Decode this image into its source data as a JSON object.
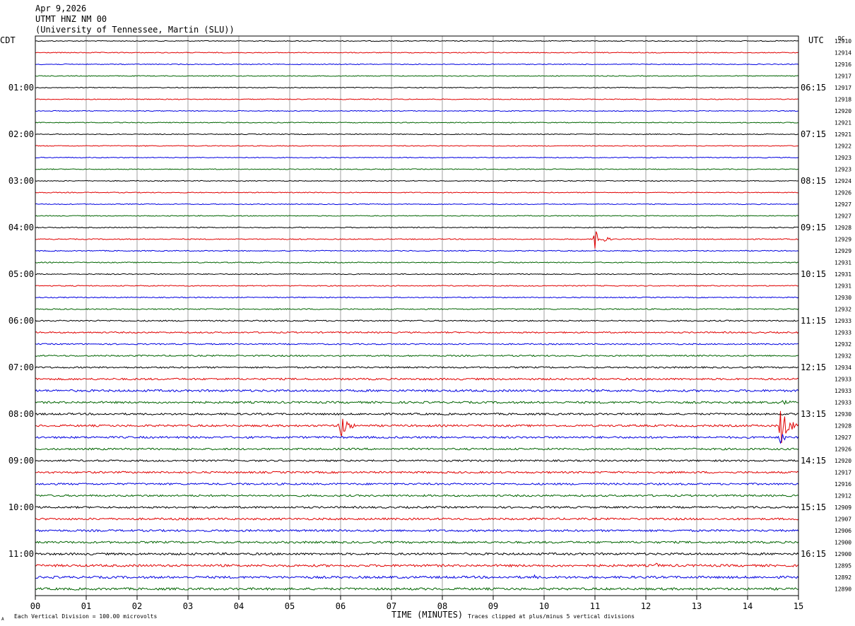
{
  "header": {
    "line1": "Apr 9,2026",
    "line2": "UTMT HNZ NM 00",
    "line3": "(University of Tennessee, Martin (SLU))"
  },
  "left_axis_title": "CDT",
  "right_axis_title": "UTC",
  "dc_header": "DC",
  "footer": {
    "scale_note": "Each Vertical Division =  100.00 microvolts",
    "xlabel": "TIME (MINUTES)",
    "clip_note": "Traces clipped at plus/minus 5 vertical divisions",
    "corner_mark": "A"
  },
  "chart_data": {
    "type": "line",
    "subtype": "helicorder",
    "x_unit": "minutes",
    "xlim": [
      0,
      15
    ],
    "x_ticks": [
      "00",
      "01",
      "02",
      "03",
      "04",
      "05",
      "06",
      "07",
      "08",
      "09",
      "10",
      "11",
      "12",
      "13",
      "14",
      "15"
    ],
    "rows_per_hour": 4,
    "row_count": 48,
    "trace_colors": [
      "#000000",
      "#e00000",
      "#0000e0",
      "#006400"
    ],
    "left_hour_labels": [
      "01:00",
      "02:00",
      "03:00",
      "04:00",
      "05:00",
      "06:00",
      "07:00",
      "08:00",
      "09:00",
      "10:00",
      "11:00"
    ],
    "right_hour_labels": [
      "06:15",
      "07:15",
      "08:15",
      "09:15",
      "10:15",
      "11:15",
      "12:15",
      "13:15",
      "14:15",
      "15:15",
      "16:15"
    ],
    "first_labeled_row": 4,
    "dc_values": [
      "12910",
      "12914",
      "12916",
      "12917",
      "12917",
      "12918",
      "12920",
      "12921",
      "12921",
      "12922",
      "12923",
      "12923",
      "12924",
      "12926",
      "12927",
      "12927",
      "12928",
      "12929",
      "12929",
      "12931",
      "12931",
      "12931",
      "12930",
      "12932",
      "12933",
      "12933",
      "12932",
      "12932",
      "12934",
      "12933",
      "12933",
      "12933",
      "12930",
      "12928",
      "12927",
      "12926",
      "12920",
      "12917",
      "12916",
      "12912",
      "12909",
      "12907",
      "12906",
      "12900",
      "12900",
      "12895",
      "12892",
      "12890"
    ],
    "noise_level": [
      0.6,
      0.6,
      0.6,
      0.6,
      0.6,
      0.6,
      0.6,
      0.6,
      0.6,
      0.6,
      0.6,
      0.6,
      0.6,
      0.6,
      0.6,
      0.6,
      0.7,
      0.7,
      0.7,
      0.7,
      0.7,
      0.7,
      0.7,
      0.8,
      0.9,
      1.0,
      0.9,
      1.0,
      1.1,
      1.3,
      1.5,
      1.4,
      1.3,
      1.4,
      1.4,
      1.3,
      1.2,
      1.3,
      1.3,
      1.3,
      1.3,
      1.4,
      1.4,
      1.4,
      1.5,
      1.6,
      1.6,
      1.6
    ],
    "events": [
      {
        "row": 17,
        "minute": 11.0,
        "amplitude": 14,
        "duration_min": 0.4
      },
      {
        "row": 33,
        "minute": 6.0,
        "amplitude": 22,
        "duration_min": 0.35
      },
      {
        "row": 33,
        "minute": 14.65,
        "amplitude": 30,
        "duration_min": 0.4
      },
      {
        "row": 34,
        "minute": 14.65,
        "amplitude": 10,
        "duration_min": 0.3
      },
      {
        "row": 31,
        "minute": 14.7,
        "amplitude": 4,
        "duration_min": 0.6
      },
      {
        "row": 46,
        "minute": 9.8,
        "amplitude": 4,
        "duration_min": 0.3
      },
      {
        "row": 45,
        "minute": 12.2,
        "amplitude": 4,
        "duration_min": 0.4
      }
    ]
  }
}
